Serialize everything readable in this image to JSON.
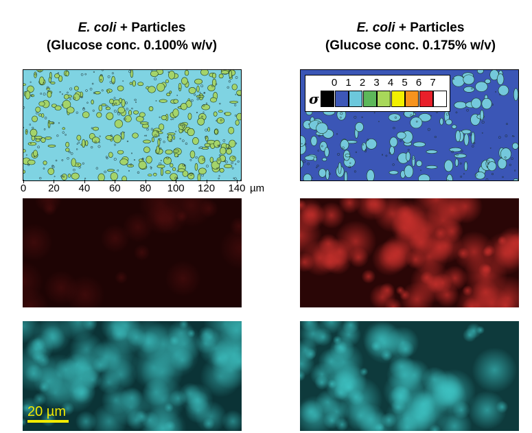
{
  "titles": {
    "left": {
      "organism": "E. coli",
      "suffix": " + Particles",
      "line2": "(Glucose conc. 0.100% w/v)"
    },
    "right": {
      "organism": "E. coli",
      "suffix": " + Particles",
      "line2": "(Glucose conc. 0.175% w/v)"
    }
  },
  "axis": {
    "ticks": [
      "0",
      "20",
      "40",
      "60",
      "80",
      "100",
      "120",
      "140"
    ],
    "unit": "µm"
  },
  "legend": {
    "symbol": "σ",
    "levels": [
      {
        "label": "0",
        "color": "#000000"
      },
      {
        "label": "1",
        "color": "#3d57b8"
      },
      {
        "label": "2",
        "color": "#6cc8dc"
      },
      {
        "label": "3",
        "color": "#5db85a"
      },
      {
        "label": "4",
        "color": "#a8d85a"
      },
      {
        "label": "5",
        "color": "#f3f000"
      },
      {
        "label": "6",
        "color": "#f7931e"
      },
      {
        "label": "7",
        "color": "#e8202a"
      },
      {
        "label": "",
        "color": "#ffffff"
      }
    ]
  },
  "scalebar": {
    "label": "20 µm",
    "color": "#f2ea00"
  },
  "colors": {
    "contour_left_base": "#7fd3e2",
    "contour_left_patch": "#a4d46a",
    "contour_right_base": "#3b56b6",
    "contour_right_patch": "#74c8dc",
    "red_dark": "#1e0404",
    "red_bright": "#c8302c",
    "cyan_dark": "#0b3336",
    "cyan_bright": "#3fc8c8"
  }
}
